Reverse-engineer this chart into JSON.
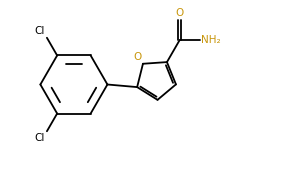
{
  "background_color": "#ffffff",
  "bond_color": "#000000",
  "label_color_Cl": "#000000",
  "label_color_O": "#c8960c",
  "label_color_NH2": "#c8960c",
  "figsize": [
    2.87,
    1.69
  ],
  "dpi": 100,
  "xlim": [
    0,
    10
  ],
  "ylim": [
    0,
    5.9
  ]
}
